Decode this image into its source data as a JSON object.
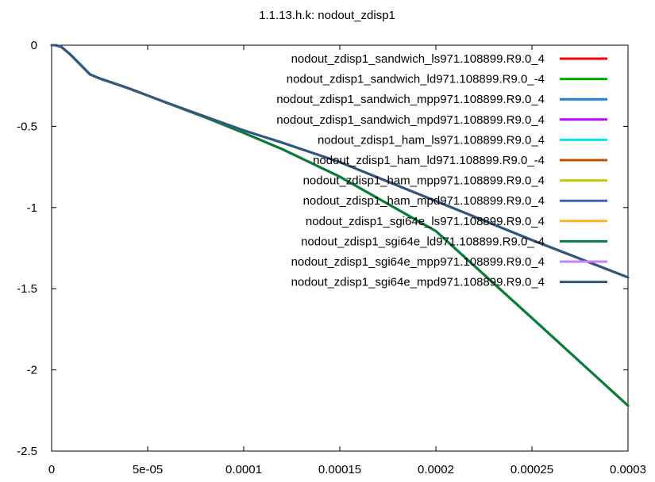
{
  "chart_data": {
    "type": "line",
    "title": "1.1.13.h.k: nodout_zdisp1",
    "xlabel": "",
    "ylabel": "",
    "xlim": [
      0,
      0.0003
    ],
    "ylim": [
      -2.5,
      0
    ],
    "xticks": [
      {
        "value": 0,
        "label": "0"
      },
      {
        "value": 5e-05,
        "label": "5e-05"
      },
      {
        "value": 0.0001,
        "label": "0.0001"
      },
      {
        "value": 0.00015,
        "label": "0.00015"
      },
      {
        "value": 0.0002,
        "label": "0.0002"
      },
      {
        "value": 0.00025,
        "label": "0.00025"
      },
      {
        "value": 0.0003,
        "label": "0.0003"
      }
    ],
    "yticks": [
      {
        "value": 0,
        "label": "0"
      },
      {
        "value": -0.5,
        "label": "-0.5"
      },
      {
        "value": -1,
        "label": "-1"
      },
      {
        "value": -1.5,
        "label": "-1.5"
      },
      {
        "value": -2,
        "label": "-2"
      },
      {
        "value": -2.5,
        "label": "-2.5"
      }
    ],
    "grid": false,
    "legend_position": "top-right",
    "series": [
      {
        "name": "nodout_zdisp1_sandwich_ls971.108899.R9.0_4",
        "color": "#ff0000",
        "group": "ls",
        "x": [
          0,
          2e-06,
          5e-06,
          1e-05,
          1.5e-05,
          2e-05,
          2.5e-05,
          3e-05,
          4e-05,
          5e-05,
          6e-05,
          8e-05,
          0.0001,
          0.00012,
          0.00015,
          0.0002,
          0.00025,
          0.0003
        ],
        "y": [
          0,
          0,
          -0.01,
          -0.06,
          -0.12,
          -0.18,
          -0.205,
          -0.225,
          -0.265,
          -0.31,
          -0.355,
          -0.445,
          -0.54,
          -0.64,
          -0.81,
          -1.145,
          -1.68,
          -2.22
        ]
      },
      {
        "name": "nodout_zdisp1_sandwich_ld971.108899.R9.0_-4",
        "color": "#00b000",
        "group": "ld",
        "x": [
          0,
          2e-06,
          5e-06,
          1e-05,
          1.5e-05,
          2e-05,
          2.5e-05,
          3e-05,
          4e-05,
          5e-05,
          6e-05,
          8e-05,
          0.0001,
          0.00012,
          0.00015,
          0.0002,
          0.00025,
          0.0003
        ],
        "y": [
          0,
          0,
          -0.01,
          -0.06,
          -0.12,
          -0.18,
          -0.205,
          -0.225,
          -0.265,
          -0.31,
          -0.355,
          -0.445,
          -0.54,
          -0.64,
          -0.81,
          -1.145,
          -1.68,
          -2.22
        ]
      },
      {
        "name": "nodout_zdisp1_sandwich_mpp971.108899.R9.0_4",
        "color": "#1a7fd6",
        "group": "mp",
        "x": [
          0,
          2e-06,
          5e-06,
          1e-05,
          1.5e-05,
          2e-05,
          2.5e-05,
          3e-05,
          4e-05,
          5e-05,
          6e-05,
          8e-05,
          0.0001,
          0.00012,
          0.00015,
          0.0002,
          0.00025,
          0.0003
        ],
        "y": [
          0,
          0,
          -0.01,
          -0.06,
          -0.12,
          -0.18,
          -0.205,
          -0.225,
          -0.265,
          -0.31,
          -0.355,
          -0.44,
          -0.525,
          -0.6,
          -0.72,
          -0.96,
          -1.2,
          -1.43
        ]
      },
      {
        "name": "nodout_zdisp1_sandwich_mpd971.108899.R9.0_4",
        "color": "#c000ff",
        "group": "mp",
        "x": [
          0,
          2e-06,
          5e-06,
          1e-05,
          1.5e-05,
          2e-05,
          2.5e-05,
          3e-05,
          4e-05,
          5e-05,
          6e-05,
          8e-05,
          0.0001,
          0.00012,
          0.00015,
          0.0002,
          0.00025,
          0.0003
        ],
        "y": [
          0,
          0,
          -0.01,
          -0.06,
          -0.12,
          -0.18,
          -0.205,
          -0.225,
          -0.265,
          -0.31,
          -0.355,
          -0.44,
          -0.525,
          -0.6,
          -0.72,
          -0.96,
          -1.2,
          -1.43
        ]
      },
      {
        "name": "nodout_zdisp1_ham_ls971.108899.R9.0_4",
        "color": "#00e5ee",
        "group": "ls",
        "x": [
          0,
          2e-06,
          5e-06,
          1e-05,
          1.5e-05,
          2e-05,
          2.5e-05,
          3e-05,
          4e-05,
          5e-05,
          6e-05,
          8e-05,
          0.0001,
          0.00012,
          0.00015,
          0.0002,
          0.00025,
          0.0003
        ],
        "y": [
          0,
          0,
          -0.01,
          -0.06,
          -0.12,
          -0.18,
          -0.205,
          -0.225,
          -0.265,
          -0.31,
          -0.355,
          -0.445,
          -0.54,
          -0.64,
          -0.81,
          -1.145,
          -1.68,
          -2.22
        ]
      },
      {
        "name": "nodout_zdisp1_ham_ld971.108899.R9.0_-4",
        "color": "#c05000",
        "group": "ld",
        "x": [
          0,
          2e-06,
          5e-06,
          1e-05,
          1.5e-05,
          2e-05,
          2.5e-05,
          3e-05,
          4e-05,
          5e-05,
          6e-05,
          8e-05,
          0.0001,
          0.00012,
          0.00015,
          0.0002,
          0.00025,
          0.0003
        ],
        "y": [
          0,
          0,
          -0.01,
          -0.06,
          -0.12,
          -0.18,
          -0.205,
          -0.225,
          -0.265,
          -0.31,
          -0.355,
          -0.445,
          -0.54,
          -0.64,
          -0.81,
          -1.145,
          -1.68,
          -2.22
        ]
      },
      {
        "name": "nodout_zdisp1_ham_mpp971.108899.R9.0_4",
        "color": "#c8c800",
        "group": "mp",
        "x": [
          0,
          2e-06,
          5e-06,
          1e-05,
          1.5e-05,
          2e-05,
          2.5e-05,
          3e-05,
          4e-05,
          5e-05,
          6e-05,
          8e-05,
          0.0001,
          0.00012,
          0.00015,
          0.0002,
          0.00025,
          0.0003
        ],
        "y": [
          0,
          0,
          -0.01,
          -0.06,
          -0.12,
          -0.18,
          -0.205,
          -0.225,
          -0.265,
          -0.31,
          -0.355,
          -0.44,
          -0.525,
          -0.6,
          -0.72,
          -0.96,
          -1.2,
          -1.43
        ]
      },
      {
        "name": "nodout_zdisp1_ham_mpd971.108899.R9.0_4",
        "color": "#4060c8",
        "group": "mp",
        "x": [
          0,
          2e-06,
          5e-06,
          1e-05,
          1.5e-05,
          2e-05,
          2.5e-05,
          3e-05,
          4e-05,
          5e-05,
          6e-05,
          8e-05,
          0.0001,
          0.00012,
          0.00015,
          0.0002,
          0.00025,
          0.0003
        ],
        "y": [
          0,
          0,
          -0.01,
          -0.06,
          -0.12,
          -0.18,
          -0.205,
          -0.225,
          -0.265,
          -0.31,
          -0.355,
          -0.44,
          -0.525,
          -0.6,
          -0.72,
          -0.96,
          -1.2,
          -1.43
        ]
      },
      {
        "name": "nodout_zdisp1_sgi64e_ls971.108899.R9.0_4",
        "color": "#ffb020",
        "group": "ls",
        "x": [
          0,
          2e-06,
          5e-06,
          1e-05,
          1.5e-05,
          2e-05,
          2.5e-05,
          3e-05,
          4e-05,
          5e-05,
          6e-05,
          8e-05,
          0.0001,
          0.00012,
          0.00015,
          0.0002,
          0.00025,
          0.0003
        ],
        "y": [
          0,
          0,
          -0.01,
          -0.06,
          -0.12,
          -0.18,
          -0.205,
          -0.225,
          -0.265,
          -0.31,
          -0.355,
          -0.445,
          -0.54,
          -0.64,
          -0.81,
          -1.145,
          -1.68,
          -2.22
        ]
      },
      {
        "name": "nodout_zdisp1_sgi64e_ld971.108899.R9.0_-4",
        "color": "#008040",
        "group": "ld",
        "x": [
          0,
          2e-06,
          5e-06,
          1e-05,
          1.5e-05,
          2e-05,
          2.5e-05,
          3e-05,
          4e-05,
          5e-05,
          6e-05,
          8e-05,
          0.0001,
          0.00012,
          0.00015,
          0.0002,
          0.00025,
          0.0003
        ],
        "y": [
          0,
          0,
          -0.01,
          -0.06,
          -0.12,
          -0.18,
          -0.205,
          -0.225,
          -0.265,
          -0.31,
          -0.355,
          -0.445,
          -0.54,
          -0.64,
          -0.81,
          -1.145,
          -1.68,
          -2.22
        ]
      },
      {
        "name": "nodout_zdisp1_sgi64e_mpp971.108899.R9.0_4",
        "color": "#c080ff",
        "group": "mp",
        "x": [
          0,
          2e-06,
          5e-06,
          1e-05,
          1.5e-05,
          2e-05,
          2.5e-05,
          3e-05,
          4e-05,
          5e-05,
          6e-05,
          8e-05,
          0.0001,
          0.00012,
          0.00015,
          0.0002,
          0.00025,
          0.0003
        ],
        "y": [
          0,
          0,
          -0.01,
          -0.06,
          -0.12,
          -0.18,
          -0.205,
          -0.225,
          -0.265,
          -0.31,
          -0.355,
          -0.44,
          -0.525,
          -0.6,
          -0.72,
          -0.96,
          -1.2,
          -1.43
        ]
      },
      {
        "name": "nodout_zdisp1_sgi64e_mpd971.108899.R9.0_4",
        "color": "#305878",
        "group": "mp",
        "x": [
          0,
          2e-06,
          5e-06,
          1e-05,
          1.5e-05,
          2e-05,
          2.5e-05,
          3e-05,
          4e-05,
          5e-05,
          6e-05,
          8e-05,
          0.0001,
          0.00012,
          0.00015,
          0.0002,
          0.00025,
          0.0003
        ],
        "y": [
          0,
          0,
          -0.01,
          -0.06,
          -0.12,
          -0.18,
          -0.205,
          -0.225,
          -0.265,
          -0.31,
          -0.355,
          -0.44,
          -0.525,
          -0.6,
          -0.72,
          -0.96,
          -1.2,
          -1.43
        ]
      }
    ]
  }
}
